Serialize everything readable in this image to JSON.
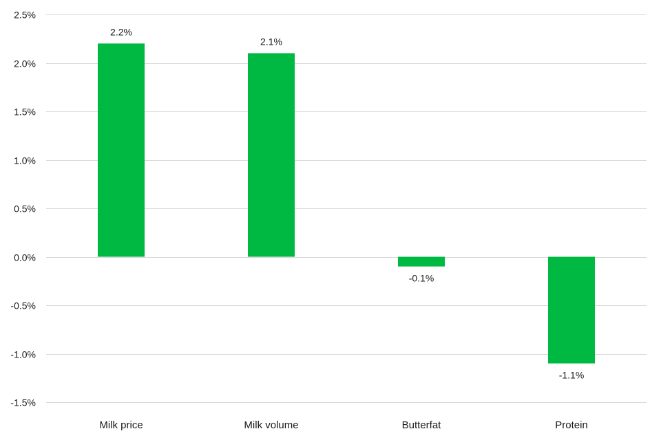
{
  "chart_data": {
    "type": "bar",
    "title": "",
    "xlabel": "",
    "ylabel": "",
    "categories": [
      "Milk price",
      "Milk volume",
      "Butterfat",
      "Protein"
    ],
    "values": [
      2.2,
      2.1,
      -0.1,
      -1.1
    ],
    "data_labels": [
      "2.2%",
      "2.1%",
      "-0.1%",
      "-1.1%"
    ],
    "ylim": [
      -1.5,
      2.5
    ],
    "yticks": [
      2.5,
      2.0,
      1.5,
      1.0,
      0.5,
      0.0,
      -0.5,
      -1.0,
      -1.5
    ],
    "ytick_labels": [
      "2.5%",
      "2.0%",
      "1.5%",
      "1.0%",
      "0.5%",
      "0.0%",
      "-0.5%",
      "-1.0%",
      "-1.5%"
    ],
    "grid": true,
    "legend": "none",
    "bar_color": "#00b942",
    "grid_color": "#d9d9d9",
    "text_color": "#1a1a1a"
  }
}
